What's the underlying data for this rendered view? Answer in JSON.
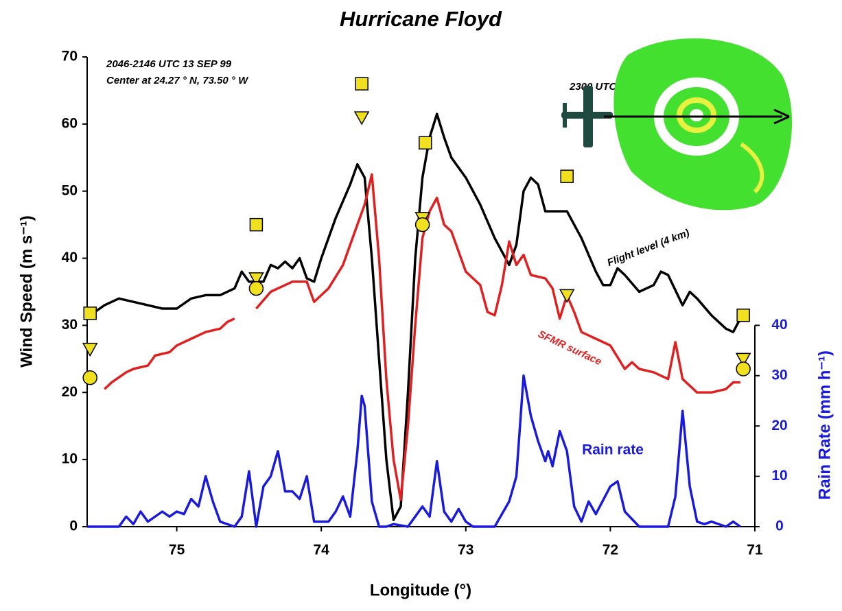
{
  "chart_data": {
    "type": "line",
    "title": "Hurricane Floyd",
    "x_label": "Longitude (°)",
    "y_label": "Wind Speed (m s⁻¹)",
    "y2_label": "Rain Rate (mm h⁻¹)",
    "annotations": [
      "2046-2146 UTC 13 SEP 99",
      "Center at 24.27 ° N, 73.50 ° W",
      "2300 UTC"
    ],
    "xlim": [
      75.62,
      71
    ],
    "xticks": [
      75,
      74,
      73,
      72,
      71
    ],
    "ylim": [
      0,
      70
    ],
    "yticks": [
      0,
      10,
      20,
      30,
      40,
      50,
      60,
      70
    ],
    "y2lim": [
      0,
      93.33
    ],
    "y2ticks": [
      0,
      10,
      20,
      30,
      40
    ],
    "series": [
      {
        "name": "Flight level (4 km)",
        "color": "#000000",
        "kind": "line",
        "x": [
          75.6,
          75.5,
          75.4,
          75.3,
          75.2,
          75.1,
          75.0,
          74.9,
          74.8,
          74.7,
          74.6,
          74.55,
          74.5,
          74.4,
          74.35,
          74.3,
          74.25,
          74.2,
          74.15,
          74.1,
          74.05,
          74.0,
          73.9,
          73.8,
          73.75,
          73.7,
          73.65,
          73.6,
          73.55,
          73.5,
          73.45,
          73.4,
          73.35,
          73.3,
          73.25,
          73.2,
          73.15,
          73.1,
          73.0,
          72.9,
          72.8,
          72.7,
          72.65,
          72.6,
          72.55,
          72.5,
          72.45,
          72.3,
          72.2,
          72.1,
          72.05,
          72.0,
          71.95,
          71.9,
          71.8,
          71.7,
          71.65,
          71.6,
          71.5,
          71.45,
          71.4,
          71.3,
          71.2,
          71.15,
          71.1
        ],
        "values": [
          31.5,
          33,
          34,
          33.5,
          33,
          32.5,
          32.5,
          34,
          34.5,
          34.5,
          35.5,
          38,
          36.5,
          36.5,
          39,
          38.5,
          39.5,
          38.5,
          40,
          37,
          36.5,
          40,
          46,
          51,
          54,
          52,
          40,
          25,
          10,
          1,
          3,
          20,
          40,
          52,
          58,
          61.5,
          58,
          55,
          52,
          48,
          43,
          39,
          42,
          50,
          52,
          51,
          47,
          47,
          43,
          38,
          36,
          36,
          38.5,
          37.5,
          35,
          36,
          38,
          37.5,
          33,
          35,
          34,
          31.5,
          29.5,
          29,
          31
        ]
      },
      {
        "name": "SFMR surface",
        "color": "#e02020",
        "kind": "line",
        "x": [
          75.5,
          75.45,
          75.35,
          75.3,
          75.2,
          75.15,
          75.05,
          75.0,
          74.9,
          74.8,
          74.7,
          74.65,
          74.6,
          74.52,
          74.45,
          74.35,
          74.3,
          74.2,
          74.1,
          74.05,
          74.0,
          73.95,
          73.85,
          73.8,
          73.75,
          73.7,
          73.65,
          73.6,
          73.55,
          73.5,
          73.45,
          73.4,
          73.35,
          73.3,
          73.25,
          73.2,
          73.15,
          73.1,
          73.0,
          72.9,
          72.85,
          72.8,
          72.75,
          72.7,
          72.65,
          72.6,
          72.55,
          72.45,
          72.4,
          72.35,
          72.3,
          72.25,
          72.2,
          72.1,
          72.0,
          71.9,
          71.85,
          71.8,
          71.7,
          71.6,
          71.55,
          71.5,
          71.45,
          71.4,
          71.3,
          71.2,
          71.15,
          71.1
        ],
        "values": [
          20.5,
          21.5,
          23,
          23.5,
          24,
          25.5,
          26,
          27,
          28,
          29,
          29.5,
          30.5,
          31,
          null,
          32.5,
          35,
          35.5,
          36.5,
          36.5,
          33.5,
          34.5,
          35.5,
          39,
          42,
          45,
          48,
          52.5,
          40,
          22,
          10,
          4,
          15,
          30,
          43,
          47,
          49,
          45,
          44,
          38,
          36,
          32,
          31.5,
          36,
          42.5,
          39,
          40.5,
          37.5,
          37,
          35.5,
          31,
          34.5,
          32,
          29,
          28,
          27,
          23.5,
          24.5,
          23.5,
          23,
          22,
          27.5,
          22,
          21,
          20,
          20,
          20.5,
          21.5,
          21.5
        ]
      },
      {
        "name": "Rain rate",
        "color": "#1a1adc",
        "kind": "line",
        "axis": "y2",
        "x": [
          75.62,
          75.4,
          75.35,
          75.3,
          75.25,
          75.2,
          75.1,
          75.05,
          75.0,
          74.95,
          74.9,
          74.85,
          74.8,
          74.75,
          74.7,
          74.6,
          74.55,
          74.5,
          74.45,
          74.4,
          74.35,
          74.3,
          74.25,
          74.2,
          74.15,
          74.1,
          74.05,
          73.95,
          73.9,
          73.85,
          73.8,
          73.75,
          73.72,
          73.7,
          73.65,
          73.6,
          73.55,
          73.5,
          73.4,
          73.35,
          73.3,
          73.25,
          73.2,
          73.15,
          73.1,
          73.05,
          73.0,
          72.95,
          72.8,
          72.7,
          72.65,
          72.6,
          72.55,
          72.5,
          72.45,
          72.43,
          72.4,
          72.35,
          72.3,
          72.25,
          72.2,
          72.15,
          72.1,
          72.0,
          71.95,
          71.9,
          71.85,
          71.8,
          71.6,
          71.55,
          71.5,
          71.45,
          71.4,
          71.35,
          71.3,
          71.2,
          71.15,
          71.1
        ],
        "values": [
          0,
          0,
          2,
          0.5,
          3,
          1,
          3,
          2,
          3,
          2.5,
          5.5,
          4,
          10,
          5,
          1,
          0,
          2,
          11,
          0,
          8,
          10,
          15,
          7,
          7,
          5.5,
          10,
          1,
          1,
          3,
          6,
          2,
          15,
          26,
          24,
          5,
          0,
          0,
          0.5,
          0,
          2,
          4,
          2,
          13,
          3,
          1,
          3.5,
          1,
          0,
          0,
          5,
          10,
          30,
          22,
          17,
          13,
          15,
          12,
          19,
          15,
          4,
          1,
          5,
          2.5,
          8,
          9,
          3,
          1.5,
          0,
          0,
          6,
          23,
          8,
          1,
          0.5,
          1,
          0,
          1,
          0
        ]
      },
      {
        "color": "#f0e020",
        "kind": "marker",
        "marker": "square",
        "x": [
          75.6,
          74.45,
          73.72,
          73.28,
          72.3,
          71.08
        ],
        "values": [
          31.8,
          45,
          66,
          57.2,
          52.2,
          31.5
        ]
      },
      {
        "color": "#f0e020",
        "kind": "marker",
        "marker": "triangle",
        "x": [
          75.6,
          74.45,
          73.72,
          73.3,
          72.3,
          71.08
        ],
        "values": [
          26.5,
          37,
          61,
          46,
          34.5,
          25
        ]
      },
      {
        "color": "#f0e020",
        "kind": "marker",
        "marker": "circle",
        "x": [
          75.6,
          74.45,
          73.3,
          71.08
        ],
        "values": [
          22.2,
          35.5,
          45,
          23.5
        ]
      }
    ]
  }
}
